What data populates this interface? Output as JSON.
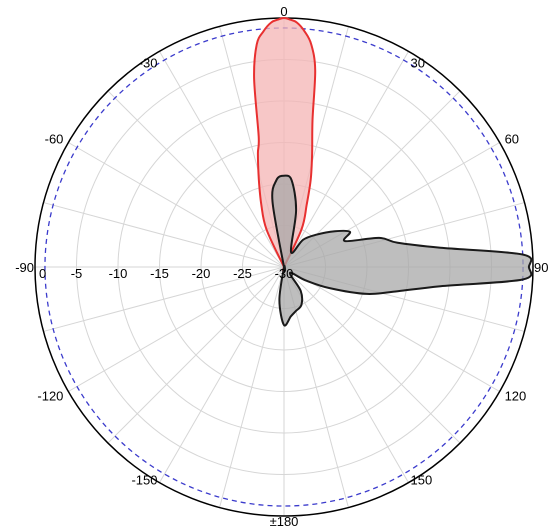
{
  "chart_data": {
    "type": "polar",
    "angle_direction": "clockwise",
    "zero_at": "top",
    "radial_axis": {
      "min": 0,
      "max": -30,
      "ticks": [
        0,
        -5,
        -10,
        -15,
        -20,
        -25,
        -30
      ],
      "tick_labels": [
        "0",
        "-5",
        "-10",
        "-15",
        "-20",
        "-25",
        "-30"
      ]
    },
    "angular_ticks": [
      {
        "angle": 0,
        "label": "0"
      },
      {
        "angle": 30,
        "label": "30"
      },
      {
        "angle": 60,
        "label": "60"
      },
      {
        "angle": 90,
        "label": "90"
      },
      {
        "angle": 120,
        "label": "120"
      },
      {
        "angle": 150,
        "label": "150"
      },
      {
        "angle": 180,
        "label": "±180"
      },
      {
        "angle": -150,
        "label": "-150"
      },
      {
        "angle": -120,
        "label": "-120"
      },
      {
        "angle": -90,
        "label": "-90"
      },
      {
        "angle": -60,
        "label": "-60"
      },
      {
        "angle": -30,
        "label": "-30"
      }
    ],
    "grid": true,
    "reference_circle": {
      "value": -1.2,
      "style": "dashed",
      "color": "#3b3bcc"
    },
    "series": [
      {
        "color": "#e83030",
        "fill": "#f4b4b4",
        "points": [
          [
            -30,
            -30
          ],
          [
            -25,
            -25
          ],
          [
            -20,
            -22
          ],
          [
            -16,
            -19
          ],
          [
            -13,
            -16
          ],
          [
            -11,
            -14
          ],
          [
            -9,
            -7
          ],
          [
            -7,
            -3
          ],
          [
            -5,
            -1.5
          ],
          [
            -3,
            -0.5
          ],
          [
            -1.5,
            -0.2
          ],
          [
            0,
            0
          ],
          [
            1.5,
            -0.2
          ],
          [
            3,
            -0.5
          ],
          [
            5,
            -1.5
          ],
          [
            7,
            -3
          ],
          [
            9,
            -6
          ],
          [
            11,
            -12
          ],
          [
            14,
            -16
          ],
          [
            17,
            -19
          ],
          [
            20,
            -22
          ],
          [
            25,
            -25
          ],
          [
            30,
            -30
          ]
        ]
      },
      {
        "color": "#1a1a1a",
        "fill": "#a8a8a8",
        "points": [
          [
            -30,
            -30
          ],
          [
            -10,
            -22
          ],
          [
            -5,
            -19.5
          ],
          [
            0,
            -19
          ],
          [
            5,
            -19.5
          ],
          [
            12,
            -23
          ],
          [
            25,
            -28
          ],
          [
            35,
            -26
          ],
          [
            45,
            -24.5
          ],
          [
            55,
            -22.5
          ],
          [
            62,
            -21
          ],
          [
            67,
            -22
          ],
          [
            73,
            -18
          ],
          [
            78,
            -16
          ],
          [
            83,
            -11
          ],
          [
            87,
            -1.2
          ],
          [
            90,
            -0.5
          ],
          [
            93,
            -1.2
          ],
          [
            97,
            -11
          ],
          [
            102,
            -16
          ],
          [
            108,
            -19.5
          ],
          [
            115,
            -24
          ],
          [
            122,
            -27
          ],
          [
            135,
            -29
          ],
          [
            145,
            -26.5
          ],
          [
            155,
            -25
          ],
          [
            165,
            -24.5
          ],
          [
            172,
            -24
          ],
          [
            180,
            -23
          ],
          [
            188,
            -26
          ],
          [
            200,
            -30
          ]
        ]
      }
    ]
  }
}
